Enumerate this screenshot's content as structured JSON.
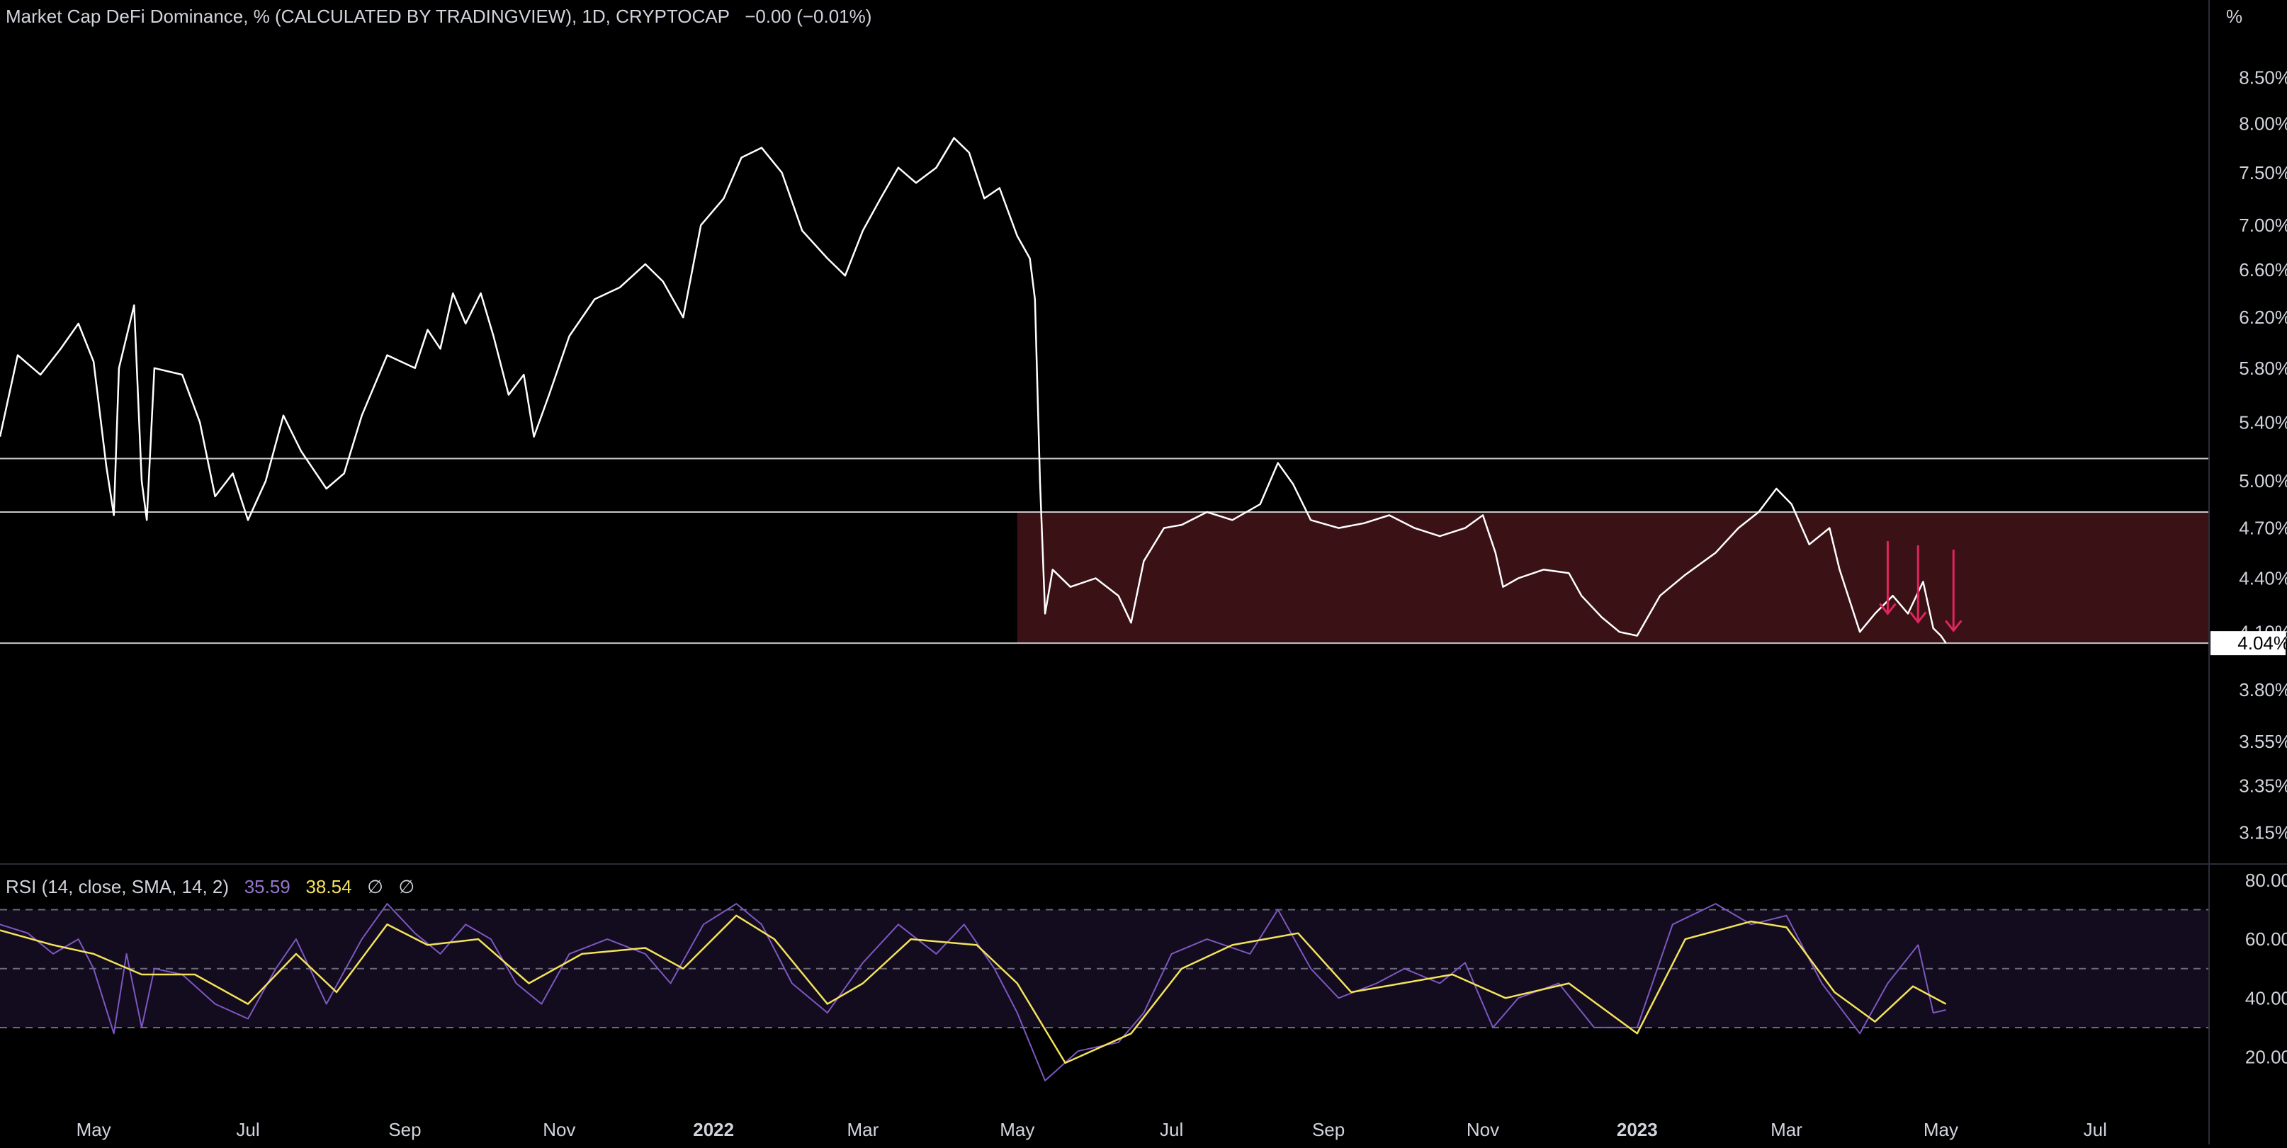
{
  "header": {
    "title": "Market Cap DeFi Dominance, % (CALCULATED BY TRADINGVIEW), 1D, CRYPTOCAP",
    "change": "−0.00 (−0.01%)",
    "unit": "%"
  },
  "rsi_header": {
    "label": "RSI (14, close, SMA, 14, 2)",
    "rsi_value": "35.59",
    "sma_value": "38.54",
    "na1": "∅",
    "na2": "∅"
  },
  "colors": {
    "background": "#000000",
    "price_line": "#ffffff",
    "rsi_line": "#7e57c2",
    "rsi_sma": "#f5e25b",
    "range_box": "#3a1114",
    "arrows": "#e0245e",
    "axis_text": "#d1d4dc",
    "hline": "#c8c8c8"
  },
  "chart_data": [
    {
      "type": "line",
      "name": "price",
      "scale": "log",
      "ylim": [
        3.05,
        8.9
      ],
      "xlim": [
        "2021-03-25",
        "2023-08-15"
      ],
      "y_ticks": [
        "8.50%",
        "8.00%",
        "7.50%",
        "7.00%",
        "6.60%",
        "6.20%",
        "5.80%",
        "5.40%",
        "5.00%",
        "4.70%",
        "4.40%",
        "4.10%",
        "3.80%",
        "3.55%",
        "3.35%",
        "3.15%"
      ],
      "last_value_label": "4.04%",
      "x_ticks": [
        "May",
        "Jul",
        "Sep",
        "Nov",
        "2022",
        "Mar",
        "May",
        "Jul",
        "Sep",
        "Nov",
        "2023",
        "Mar",
        "May",
        "Jul"
      ],
      "x_tick_dates": [
        "2021-05-01",
        "2021-07-01",
        "2021-09-01",
        "2021-11-01",
        "2022-01-01",
        "2022-03-01",
        "2022-05-01",
        "2022-07-01",
        "2022-09-01",
        "2022-11-01",
        "2023-01-01",
        "2023-03-01",
        "2023-05-01",
        "2023-07-01"
      ],
      "x_tick_bold": [
        false,
        false,
        false,
        false,
        true,
        false,
        false,
        false,
        false,
        false,
        true,
        false,
        false,
        false
      ],
      "horizontal_lines": [
        5.15,
        4.8,
        4.04
      ],
      "range_box": {
        "x_start": "2022-05-01",
        "x_end": "2023-08-15",
        "y_low": 4.04,
        "y_high": 4.8
      },
      "arrows_x": [
        "2023-04-10",
        "2023-04-22",
        "2023-05-06"
      ],
      "points": [
        [
          "2021-03-25",
          5.3
        ],
        [
          "2021-04-01",
          5.9
        ],
        [
          "2021-04-10",
          5.75
        ],
        [
          "2021-04-18",
          5.95
        ],
        [
          "2021-04-25",
          6.15
        ],
        [
          "2021-05-01",
          5.85
        ],
        [
          "2021-05-06",
          5.1
        ],
        [
          "2021-05-09",
          4.78
        ],
        [
          "2021-05-11",
          5.8
        ],
        [
          "2021-05-17",
          6.3
        ],
        [
          "2021-05-20",
          5.0
        ],
        [
          "2021-05-22",
          4.75
        ],
        [
          "2021-05-25",
          5.8
        ],
        [
          "2021-06-05",
          5.75
        ],
        [
          "2021-06-12",
          5.4
        ],
        [
          "2021-06-18",
          4.9
        ],
        [
          "2021-06-25",
          5.05
        ],
        [
          "2021-07-01",
          4.75
        ],
        [
          "2021-07-08",
          5.0
        ],
        [
          "2021-07-15",
          5.45
        ],
        [
          "2021-07-22",
          5.2
        ],
        [
          "2021-08-01",
          4.95
        ],
        [
          "2021-08-08",
          5.05
        ],
        [
          "2021-08-15",
          5.45
        ],
        [
          "2021-08-25",
          5.9
        ],
        [
          "2021-09-05",
          5.8
        ],
        [
          "2021-09-10",
          6.1
        ],
        [
          "2021-09-15",
          5.95
        ],
        [
          "2021-09-20",
          6.4
        ],
        [
          "2021-09-25",
          6.15
        ],
        [
          "2021-10-01",
          6.4
        ],
        [
          "2021-10-06",
          6.05
        ],
        [
          "2021-10-12",
          5.6
        ],
        [
          "2021-10-18",
          5.75
        ],
        [
          "2021-10-22",
          5.3
        ],
        [
          "2021-10-28",
          5.6
        ],
        [
          "2021-11-05",
          6.05
        ],
        [
          "2021-11-15",
          6.35
        ],
        [
          "2021-11-25",
          6.45
        ],
        [
          "2021-12-05",
          6.65
        ],
        [
          "2021-12-12",
          6.5
        ],
        [
          "2021-12-20",
          6.2
        ],
        [
          "2021-12-27",
          7.0
        ],
        [
          "2022-01-05",
          7.25
        ],
        [
          "2022-01-12",
          7.65
        ],
        [
          "2022-01-20",
          7.75
        ],
        [
          "2022-01-28",
          7.5
        ],
        [
          "2022-02-05",
          6.95
        ],
        [
          "2022-02-15",
          6.7
        ],
        [
          "2022-02-22",
          6.55
        ],
        [
          "2022-03-01",
          6.95
        ],
        [
          "2022-03-08",
          7.25
        ],
        [
          "2022-03-15",
          7.55
        ],
        [
          "2022-03-22",
          7.4
        ],
        [
          "2022-03-30",
          7.55
        ],
        [
          "2022-04-06",
          7.85
        ],
        [
          "2022-04-12",
          7.7
        ],
        [
          "2022-04-18",
          7.25
        ],
        [
          "2022-04-24",
          7.35
        ],
        [
          "2022-05-01",
          6.9
        ],
        [
          "2022-05-06",
          6.7
        ],
        [
          "2022-05-08",
          6.35
        ],
        [
          "2022-05-10",
          5.0
        ],
        [
          "2022-05-12",
          4.2
        ],
        [
          "2022-05-15",
          4.45
        ],
        [
          "2022-05-22",
          4.35
        ],
        [
          "2022-06-01",
          4.4
        ],
        [
          "2022-06-10",
          4.3
        ],
        [
          "2022-06-15",
          4.15
        ],
        [
          "2022-06-20",
          4.5
        ],
        [
          "2022-06-28",
          4.7
        ],
        [
          "2022-07-05",
          4.72
        ],
        [
          "2022-07-15",
          4.8
        ],
        [
          "2022-07-25",
          4.75
        ],
        [
          "2022-08-05",
          4.85
        ],
        [
          "2022-08-12",
          5.12
        ],
        [
          "2022-08-18",
          4.98
        ],
        [
          "2022-08-25",
          4.75
        ],
        [
          "2022-09-05",
          4.7
        ],
        [
          "2022-09-15",
          4.73
        ],
        [
          "2022-09-25",
          4.78
        ],
        [
          "2022-10-05",
          4.7
        ],
        [
          "2022-10-15",
          4.65
        ],
        [
          "2022-10-25",
          4.7
        ],
        [
          "2022-11-01",
          4.78
        ],
        [
          "2022-11-06",
          4.55
        ],
        [
          "2022-11-09",
          4.35
        ],
        [
          "2022-11-15",
          4.4
        ],
        [
          "2022-11-25",
          4.45
        ],
        [
          "2022-12-05",
          4.43
        ],
        [
          "2022-12-10",
          4.3
        ],
        [
          "2022-12-18",
          4.18
        ],
        [
          "2022-12-25",
          4.1
        ],
        [
          "2023-01-01",
          4.08
        ],
        [
          "2023-01-10",
          4.3
        ],
        [
          "2023-01-20",
          4.42
        ],
        [
          "2023-02-01",
          4.55
        ],
        [
          "2023-02-10",
          4.7
        ],
        [
          "2023-02-18",
          4.8
        ],
        [
          "2023-02-25",
          4.95
        ],
        [
          "2023-03-03",
          4.85
        ],
        [
          "2023-03-10",
          4.6
        ],
        [
          "2023-03-18",
          4.7
        ],
        [
          "2023-03-22",
          4.45
        ],
        [
          "2023-03-30",
          4.1
        ],
        [
          "2023-04-05",
          4.2
        ],
        [
          "2023-04-12",
          4.3
        ],
        [
          "2023-04-18",
          4.2
        ],
        [
          "2023-04-24",
          4.38
        ],
        [
          "2023-04-28",
          4.12
        ],
        [
          "2023-05-01",
          4.08
        ],
        [
          "2023-05-03",
          4.04
        ]
      ]
    },
    {
      "type": "line",
      "name": "RSI",
      "ylim": [
        5,
        85
      ],
      "y_ticks": [
        80,
        60,
        40,
        20
      ],
      "y_tick_labels": [
        "80.00",
        "60.00",
        "40.00",
        "20.00"
      ],
      "bands": [
        70,
        50,
        30
      ],
      "series": [
        {
          "name": "RSI",
          "points": [
            [
              "2021-03-25",
              65
            ],
            [
              "2021-04-05",
              62
            ],
            [
              "2021-04-15",
              55
            ],
            [
              "2021-04-25",
              60
            ],
            [
              "2021-05-01",
              50
            ],
            [
              "2021-05-09",
              28
            ],
            [
              "2021-05-14",
              55
            ],
            [
              "2021-05-20",
              30
            ],
            [
              "2021-05-25",
              50
            ],
            [
              "2021-06-05",
              48
            ],
            [
              "2021-06-18",
              38
            ],
            [
              "2021-07-01",
              33
            ],
            [
              "2021-07-12",
              50
            ],
            [
              "2021-07-20",
              60
            ],
            [
              "2021-08-01",
              38
            ],
            [
              "2021-08-15",
              60
            ],
            [
              "2021-08-25",
              72
            ],
            [
              "2021-09-05",
              62
            ],
            [
              "2021-09-15",
              55
            ],
            [
              "2021-09-25",
              65
            ],
            [
              "2021-10-05",
              60
            ],
            [
              "2021-10-15",
              45
            ],
            [
              "2021-10-25",
              38
            ],
            [
              "2021-11-05",
              55
            ],
            [
              "2021-11-20",
              60
            ],
            [
              "2021-12-05",
              55
            ],
            [
              "2021-12-15",
              45
            ],
            [
              "2021-12-28",
              65
            ],
            [
              "2022-01-10",
              72
            ],
            [
              "2022-01-20",
              65
            ],
            [
              "2022-02-01",
              45
            ],
            [
              "2022-02-15",
              35
            ],
            [
              "2022-03-01",
              52
            ],
            [
              "2022-03-15",
              65
            ],
            [
              "2022-03-30",
              55
            ],
            [
              "2022-04-10",
              65
            ],
            [
              "2022-04-22",
              50
            ],
            [
              "2022-05-01",
              35
            ],
            [
              "2022-05-12",
              12
            ],
            [
              "2022-05-25",
              22
            ],
            [
              "2022-06-10",
              25
            ],
            [
              "2022-06-20",
              35
            ],
            [
              "2022-07-01",
              55
            ],
            [
              "2022-07-15",
              60
            ],
            [
              "2022-08-01",
              55
            ],
            [
              "2022-08-12",
              70
            ],
            [
              "2022-08-25",
              50
            ],
            [
              "2022-09-05",
              40
            ],
            [
              "2022-09-20",
              45
            ],
            [
              "2022-10-01",
              50
            ],
            [
              "2022-10-15",
              45
            ],
            [
              "2022-10-25",
              52
            ],
            [
              "2022-11-05",
              30
            ],
            [
              "2022-11-15",
              40
            ],
            [
              "2022-12-01",
              45
            ],
            [
              "2022-12-15",
              30
            ],
            [
              "2023-01-01",
              30
            ],
            [
              "2023-01-15",
              65
            ],
            [
              "2023-02-01",
              72
            ],
            [
              "2023-02-15",
              65
            ],
            [
              "2023-03-01",
              68
            ],
            [
              "2023-03-15",
              45
            ],
            [
              "2023-03-30",
              28
            ],
            [
              "2023-04-10",
              45
            ],
            [
              "2023-04-22",
              58
            ],
            [
              "2023-04-28",
              35
            ],
            [
              "2023-05-03",
              36
            ]
          ]
        },
        {
          "name": "SMA",
          "points": [
            [
              "2021-03-25",
              63
            ],
            [
              "2021-04-15",
              58
            ],
            [
              "2021-05-01",
              55
            ],
            [
              "2021-05-20",
              48
            ],
            [
              "2021-06-10",
              48
            ],
            [
              "2021-07-01",
              38
            ],
            [
              "2021-07-20",
              55
            ],
            [
              "2021-08-05",
              42
            ],
            [
              "2021-08-25",
              65
            ],
            [
              "2021-09-10",
              58
            ],
            [
              "2021-09-30",
              60
            ],
            [
              "2021-10-20",
              45
            ],
            [
              "2021-11-10",
              55
            ],
            [
              "2021-12-05",
              57
            ],
            [
              "2021-12-20",
              50
            ],
            [
              "2022-01-10",
              68
            ],
            [
              "2022-01-25",
              60
            ],
            [
              "2022-02-15",
              38
            ],
            [
              "2022-03-01",
              45
            ],
            [
              "2022-03-20",
              60
            ],
            [
              "2022-04-15",
              58
            ],
            [
              "2022-05-01",
              45
            ],
            [
              "2022-05-20",
              18
            ],
            [
              "2022-06-15",
              28
            ],
            [
              "2022-07-05",
              50
            ],
            [
              "2022-07-25",
              58
            ],
            [
              "2022-08-20",
              62
            ],
            [
              "2022-09-10",
              42
            ],
            [
              "2022-09-30",
              45
            ],
            [
              "2022-10-20",
              48
            ],
            [
              "2022-11-10",
              40
            ],
            [
              "2022-12-05",
              45
            ],
            [
              "2023-01-01",
              28
            ],
            [
              "2023-01-20",
              60
            ],
            [
              "2023-02-15",
              66
            ],
            [
              "2023-03-01",
              64
            ],
            [
              "2023-03-20",
              42
            ],
            [
              "2023-04-05",
              32
            ],
            [
              "2023-04-20",
              44
            ],
            [
              "2023-05-03",
              38
            ]
          ]
        }
      ]
    }
  ]
}
